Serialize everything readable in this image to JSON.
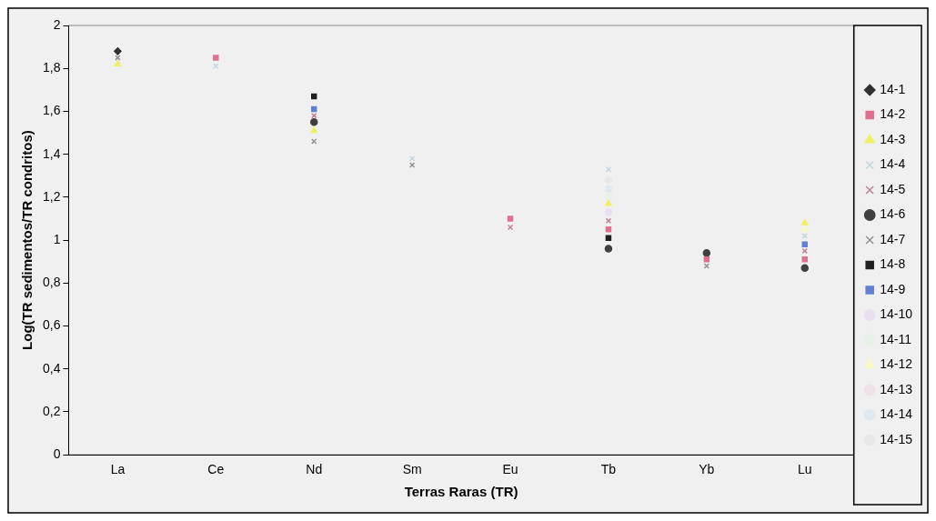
{
  "chart_data": {
    "type": "scatter",
    "xlabel": "Terras Raras (TR)",
    "ylabel": "Log(TR sedimentos/TR condritos)",
    "categories": [
      "La",
      "Ce",
      "Nd",
      "Sm",
      "Eu",
      "Tb",
      "Yb",
      "Lu"
    ],
    "ylim": [
      0,
      2
    ],
    "yticks": [
      0,
      {
        "value": 0.2,
        "label": "0,2"
      },
      {
        "value": 0.4,
        "label": "0,4"
      },
      {
        "value": 0.6,
        "label": "0,6"
      },
      {
        "value": 0.8,
        "label": "0,8"
      },
      1,
      {
        "value": 1.2,
        "label": "1,2"
      },
      {
        "value": 1.4,
        "label": "1,4"
      },
      {
        "value": 1.6,
        "label": "1,6"
      },
      {
        "value": 1.8,
        "label": "1,8"
      },
      2
    ],
    "grid": false,
    "legend": "right",
    "series": [
      {
        "name": "14-1",
        "color": "#303030",
        "marker": "diamond",
        "values": [
          1.88,
          null,
          null,
          null,
          null,
          null,
          null,
          null
        ]
      },
      {
        "name": "14-2",
        "color": "#e07090",
        "marker": "square",
        "values": [
          null,
          1.85,
          null,
          null,
          1.1,
          1.05,
          0.91,
          0.91
        ]
      },
      {
        "name": "14-3",
        "color": "#f0f060",
        "marker": "triangle",
        "values": [
          1.82,
          null,
          1.51,
          null,
          null,
          1.17,
          null,
          1.08
        ]
      },
      {
        "name": "14-4",
        "color": "#c0d8e0",
        "marker": "cross",
        "values": [
          null,
          1.81,
          null,
          1.38,
          null,
          1.33,
          null,
          1.02
        ]
      },
      {
        "name": "14-5",
        "color": "#c08090",
        "marker": "cross",
        "values": [
          null,
          null,
          1.58,
          null,
          1.06,
          1.09,
          null,
          0.95
        ]
      },
      {
        "name": "14-6",
        "color": "#404040",
        "marker": "circle",
        "values": [
          null,
          null,
          1.55,
          null,
          null,
          0.96,
          0.94,
          0.87
        ]
      },
      {
        "name": "14-7",
        "color": "#909090",
        "marker": "cross",
        "values": [
          1.85,
          null,
          1.46,
          1.35,
          null,
          null,
          0.88,
          null
        ]
      },
      {
        "name": "14-8",
        "color": "#202020",
        "marker": "square",
        "values": [
          null,
          null,
          1.67,
          null,
          null,
          1.01,
          null,
          null
        ]
      },
      {
        "name": "14-9",
        "color": "#6080d0",
        "marker": "square",
        "values": [
          null,
          null,
          1.61,
          null,
          null,
          null,
          null,
          0.98
        ]
      },
      {
        "name": "14-10",
        "color": "#e8e0f0",
        "marker": "circle",
        "values": [
          null,
          null,
          null,
          null,
          null,
          1.13,
          null,
          null
        ]
      },
      {
        "name": "14-11",
        "color": "#e8f0e8",
        "marker": "circle",
        "values": [
          null,
          null,
          null,
          null,
          null,
          1.2,
          null,
          null
        ]
      },
      {
        "name": "14-12",
        "color": "#f8f8c0",
        "marker": "triangle",
        "values": [
          null,
          null,
          null,
          null,
          null,
          null,
          null,
          1.05
        ]
      },
      {
        "name": "14-13",
        "color": "#f0e0e8",
        "marker": "circle",
        "values": [
          null,
          null,
          null,
          null,
          null,
          null,
          null,
          null
        ]
      },
      {
        "name": "14-14",
        "color": "#e0e8f0",
        "marker": "circle",
        "values": [
          null,
          null,
          null,
          null,
          null,
          1.24,
          null,
          null
        ]
      },
      {
        "name": "14-15",
        "color": "#e8e8e8",
        "marker": "circle",
        "values": [
          null,
          null,
          null,
          null,
          null,
          1.28,
          null,
          null
        ]
      }
    ]
  }
}
